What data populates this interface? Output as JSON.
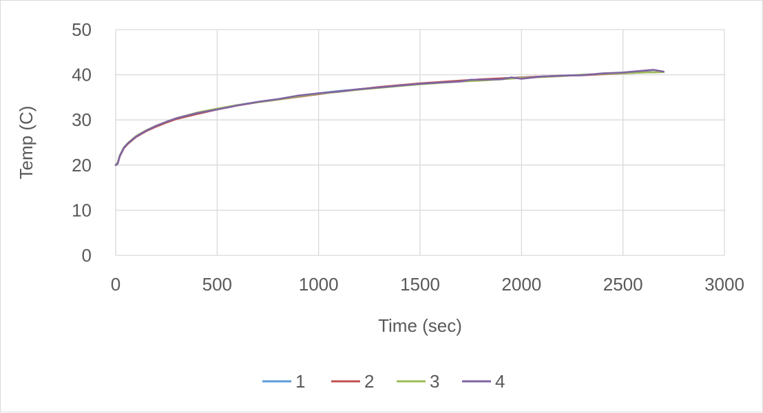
{
  "chart_data": {
    "type": "line",
    "title": "",
    "xlabel": "Time (sec)",
    "ylabel": "Temp (C)",
    "xlim": [
      0,
      3000
    ],
    "ylim": [
      0,
      50
    ],
    "x_ticks": [
      0,
      500,
      1000,
      1500,
      2000,
      2500,
      3000
    ],
    "y_ticks": [
      0,
      10,
      20,
      30,
      40,
      50
    ],
    "grid": true,
    "legend_position": "bottom",
    "series": [
      {
        "name": "1",
        "color": "#5b9bd5",
        "x": [
          0,
          10,
          20,
          40,
          60,
          100,
          150,
          200,
          250,
          300,
          400,
          500,
          600,
          700,
          800,
          900,
          1000,
          1100,
          1200,
          1300,
          1400,
          1500,
          1600,
          1700,
          1800,
          1900,
          2000,
          2100,
          2200,
          2300,
          2400,
          2500,
          2600,
          2700
        ],
        "y": [
          20.0,
          20.5,
          22.0,
          23.8,
          24.8,
          26.3,
          27.6,
          28.6,
          29.5,
          30.3,
          31.5,
          32.4,
          33.3,
          34.0,
          34.6,
          35.3,
          35.9,
          36.4,
          36.8,
          37.2,
          37.6,
          38.0,
          38.3,
          38.6,
          38.9,
          39.2,
          39.4,
          39.6,
          39.8,
          40.0,
          40.2,
          40.4,
          40.6,
          40.6
        ]
      },
      {
        "name": "2",
        "color": "#c0504d",
        "x": [
          0,
          10,
          20,
          40,
          60,
          100,
          150,
          200,
          250,
          300,
          400,
          500,
          600,
          700,
          800,
          900,
          1000,
          1100,
          1200,
          1300,
          1400,
          1500,
          1600,
          1700,
          1800,
          1900,
          2000,
          2100,
          2200,
          2300,
          2400,
          2500,
          2600,
          2700
        ],
        "y": [
          20.0,
          20.4,
          21.9,
          23.7,
          24.7,
          26.2,
          27.5,
          28.5,
          29.4,
          30.2,
          31.3,
          32.3,
          33.2,
          33.9,
          34.5,
          35.1,
          35.7,
          36.3,
          36.8,
          37.3,
          37.7,
          38.1,
          38.4,
          38.7,
          39.0,
          39.2,
          39.4,
          39.6,
          39.8,
          39.9,
          40.1,
          40.3,
          40.5,
          40.6
        ]
      },
      {
        "name": "3",
        "color": "#9bbb59",
        "x": [
          0,
          10,
          20,
          40,
          60,
          100,
          150,
          200,
          250,
          300,
          400,
          500,
          600,
          700,
          800,
          900,
          1000,
          1100,
          1200,
          1300,
          1400,
          1500,
          1600,
          1700,
          1800,
          1900,
          2000,
          2100,
          2200,
          2300,
          2400,
          2500,
          2600,
          2700
        ],
        "y": [
          20.0,
          20.6,
          22.1,
          23.9,
          24.9,
          26.4,
          27.7,
          28.7,
          29.6,
          30.4,
          31.6,
          32.5,
          33.3,
          33.9,
          34.5,
          35.2,
          35.8,
          36.2,
          36.7,
          37.1,
          37.5,
          37.9,
          38.2,
          38.5,
          38.7,
          39.0,
          39.3,
          39.5,
          39.7,
          40.0,
          40.2,
          40.3,
          40.5,
          40.6
        ]
      },
      {
        "name": "4",
        "color": "#8064a2",
        "x": [
          0,
          10,
          20,
          40,
          60,
          100,
          150,
          200,
          250,
          300,
          400,
          500,
          600,
          700,
          800,
          900,
          1000,
          1100,
          1200,
          1300,
          1400,
          1500,
          1600,
          1700,
          1750,
          1800,
          1900,
          1950,
          2000,
          2100,
          2200,
          2300,
          2400,
          2500,
          2600,
          2650,
          2700
        ],
        "y": [
          20.0,
          20.3,
          22.0,
          23.8,
          24.8,
          26.3,
          27.6,
          28.7,
          29.6,
          30.4,
          31.5,
          32.3,
          33.2,
          34.0,
          34.6,
          35.4,
          35.9,
          36.3,
          36.8,
          37.2,
          37.6,
          38.0,
          38.3,
          38.5,
          38.9,
          38.9,
          39.0,
          39.4,
          39.1,
          39.6,
          39.8,
          39.9,
          40.3,
          40.5,
          40.9,
          41.1,
          40.7
        ]
      }
    ]
  }
}
